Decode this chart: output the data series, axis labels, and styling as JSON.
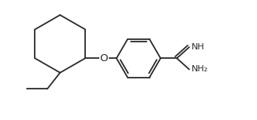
{
  "line_color": "#2a2a2a",
  "bg_color": "#ffffff",
  "line_width": 1.3,
  "font_size": 7.5,
  "figsize": [
    3.26,
    1.53
  ],
  "dpi": 100,
  "xlim": [
    -0.5,
    10.5
  ],
  "ylim": [
    0.0,
    5.2
  ]
}
